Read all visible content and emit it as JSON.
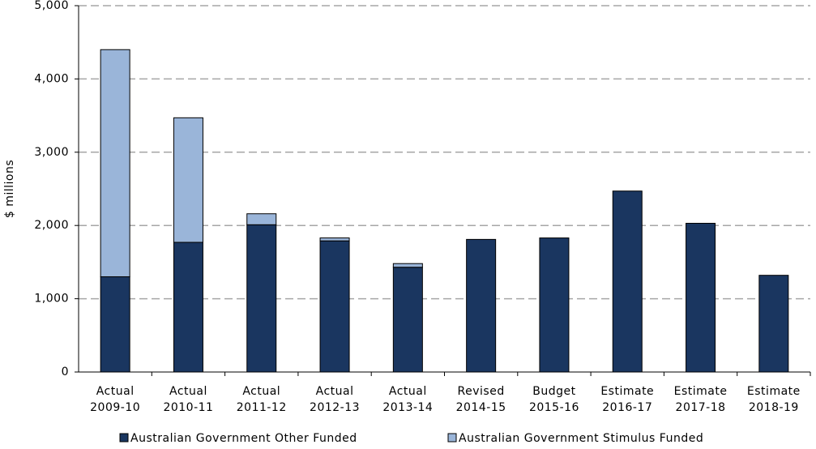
{
  "chart_data": {
    "type": "stacked_bar",
    "y_label": "$ millions",
    "categories": [
      [
        "Actual",
        "2009-10"
      ],
      [
        "Actual",
        "2010-11"
      ],
      [
        "Actual",
        "2011-12"
      ],
      [
        "Actual",
        "2012-13"
      ],
      [
        "Actual",
        "2013-14"
      ],
      [
        "Revised",
        "2014-15"
      ],
      [
        "Budget",
        "2015-16"
      ],
      [
        "Estimate",
        "2016-17"
      ],
      [
        "Estimate",
        "2017-18"
      ],
      [
        "Estimate",
        "2018-19"
      ]
    ],
    "series": [
      {
        "name": "Australian Government Other Funded",
        "color": "#1a3660",
        "values": [
          1300,
          1770,
          2010,
          1790,
          1430,
          1810,
          1830,
          2470,
          2030,
          1320
        ]
      },
      {
        "name": "Australian Government Stimulus Funded",
        "color": "#9ab5d9",
        "values": [
          3100,
          1700,
          150,
          40,
          50,
          0,
          0,
          0,
          0,
          0
        ]
      }
    ],
    "ylim": [
      0,
      5000
    ],
    "yticks": [
      0,
      {
        "value": 1000,
        "label": "1,000"
      },
      {
        "value": 2000,
        "label": "2,000"
      },
      {
        "value": 3000,
        "label": "3,000"
      },
      {
        "value": 4000,
        "label": "4,000"
      },
      {
        "value": 5000,
        "label": "5,000"
      }
    ],
    "grid": true,
    "legend": "bottom"
  }
}
